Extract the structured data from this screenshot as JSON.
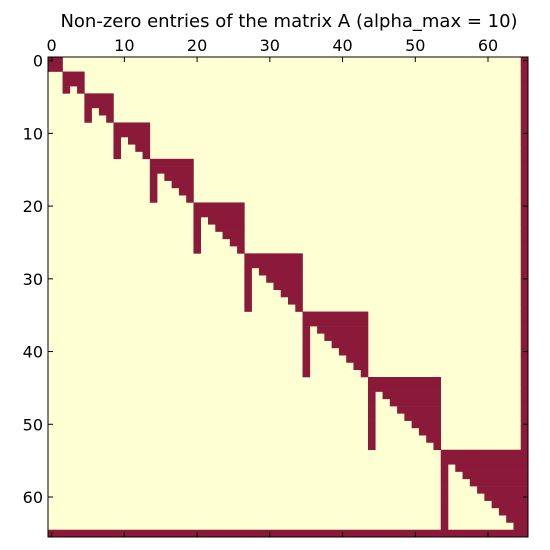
{
  "chart_data": {
    "type": "heatmap",
    "title": "Non-zero entries of the matrix A (alpha_max = 10)",
    "size": 66,
    "x_ticks": [
      0,
      10,
      20,
      30,
      40,
      50,
      60
    ],
    "y_ticks": [
      0,
      10,
      20,
      30,
      40,
      50,
      60
    ],
    "x_tick_position": "top",
    "xlim": [
      -0.5,
      65.5
    ],
    "ylim": [
      65.5,
      -0.5
    ],
    "colors": {
      "nonzero": "#8B1A3A",
      "zero": "#FFFFD4",
      "frame": "#000000"
    },
    "blocks": [
      [
        0,
        1
      ],
      [
        2,
        4
      ],
      [
        5,
        8
      ],
      [
        9,
        13
      ],
      [
        14,
        19
      ],
      [
        20,
        26
      ],
      [
        27,
        34
      ],
      [
        35,
        43
      ],
      [
        44,
        53
      ],
      [
        54,
        64
      ]
    ],
    "full_row": 65,
    "full_col": 65
  }
}
